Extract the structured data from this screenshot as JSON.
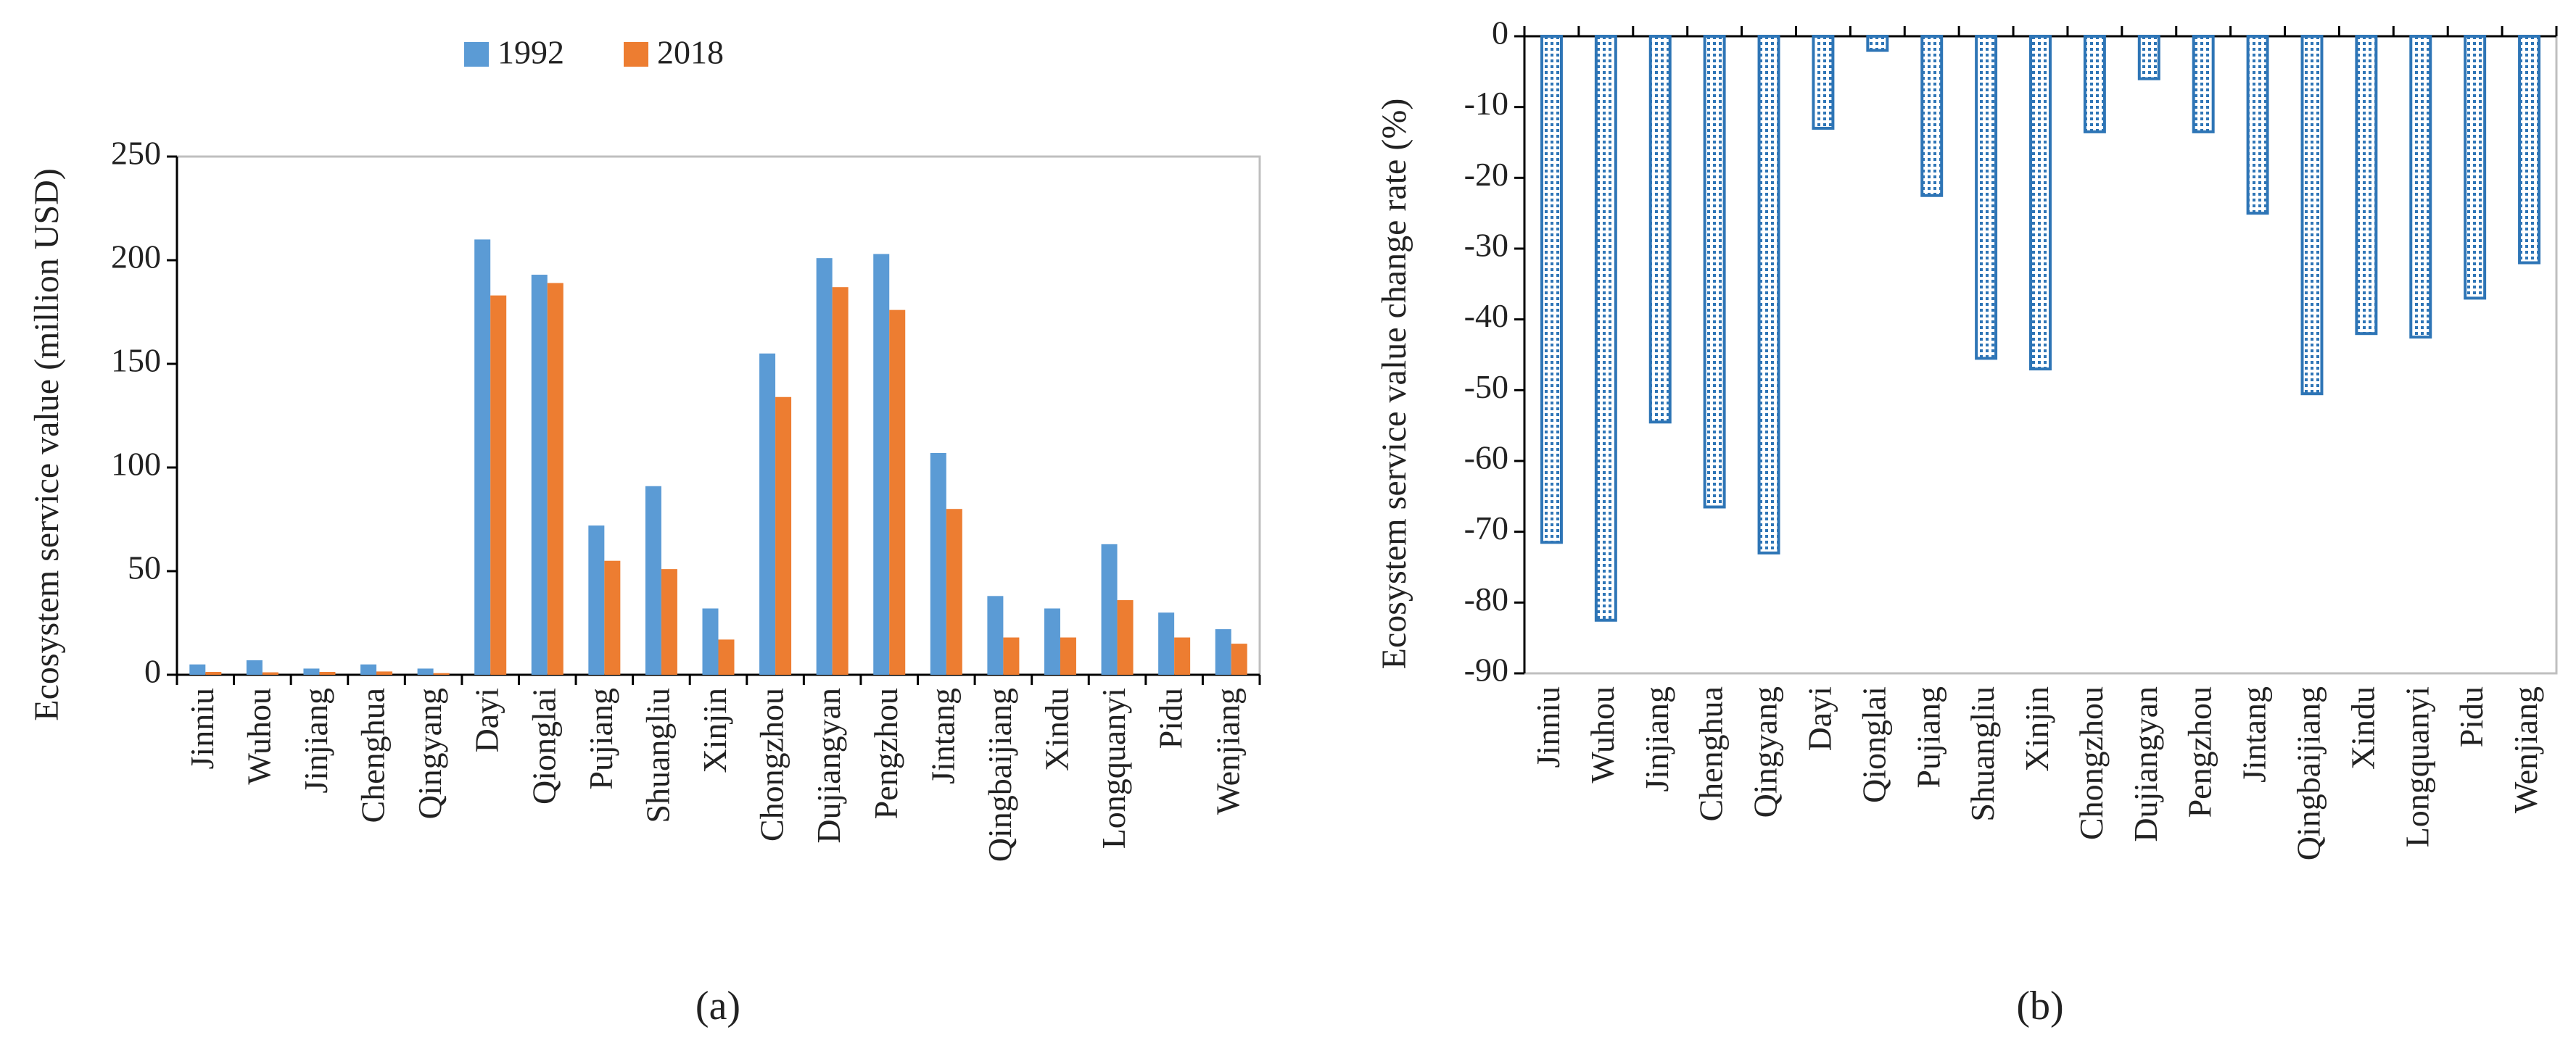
{
  "chart_data": [
    {
      "type": "bar",
      "caption": "(a)",
      "ylabel": "Ecosystem service value (million USD)",
      "categories": [
        "Jinniu",
        "Wuhou",
        "Jinjiang",
        "Chenghua",
        "Qingyang",
        "Dayi",
        "Qionglai",
        "Pujiang",
        "Shuangliu",
        "Xinjin",
        "Chongzhou",
        "Dujiangyan",
        "Pengzhou",
        "Jintang",
        "Qingbaijiang",
        "Xindu",
        "Longquanyi",
        "Pidu",
        "Wenjiang"
      ],
      "series": [
        {
          "name": "1992",
          "color": "#5b9bd5",
          "values": [
            5,
            7,
            3,
            5,
            3,
            210,
            193,
            72,
            91,
            32,
            155,
            201,
            203,
            107,
            38,
            32,
            63,
            30,
            22
          ]
        },
        {
          "name": "2018",
          "color": "#ed7d31",
          "values": [
            1.4,
            1.2,
            1.4,
            1.6,
            0.8,
            183,
            189,
            55,
            51,
            17,
            134,
            187,
            176,
            80,
            18,
            18,
            36,
            18,
            15
          ]
        }
      ],
      "ylim": [
        0,
        250
      ],
      "yticks": [
        0,
        50,
        100,
        150,
        200,
        250
      ],
      "legend": "top"
    },
    {
      "type": "bar",
      "caption": "(b)",
      "ylabel": "Ecosystem service value change rate (%)",
      "categories": [
        "Jinniu",
        "Wuhou",
        "Jinjiang",
        "Chenghua",
        "Qingyang",
        "Dayi",
        "Qionglai",
        "Pujiang",
        "Shuangliu",
        "Xinjin",
        "Chongzhou",
        "Dujiangyan",
        "Pengzhou",
        "Jintang",
        "Qingbaijiang",
        "Xindu",
        "Longquanyi",
        "Pidu",
        "Wenjiang"
      ],
      "color": "#2e75b6",
      "fill": "dotted",
      "values": [
        -71.5,
        -82.5,
        -54.5,
        -66.5,
        -73,
        -13,
        -2,
        -22.5,
        -45.5,
        -47,
        -13.5,
        -6,
        -13.5,
        -25,
        -50.5,
        -42,
        -42.5,
        -37,
        -32
      ],
      "ylim": [
        -90,
        0
      ],
      "yticks": [
        0,
        -10,
        -20,
        -30,
        -40,
        -50,
        -60,
        -70,
        -80,
        -90
      ]
    }
  ]
}
